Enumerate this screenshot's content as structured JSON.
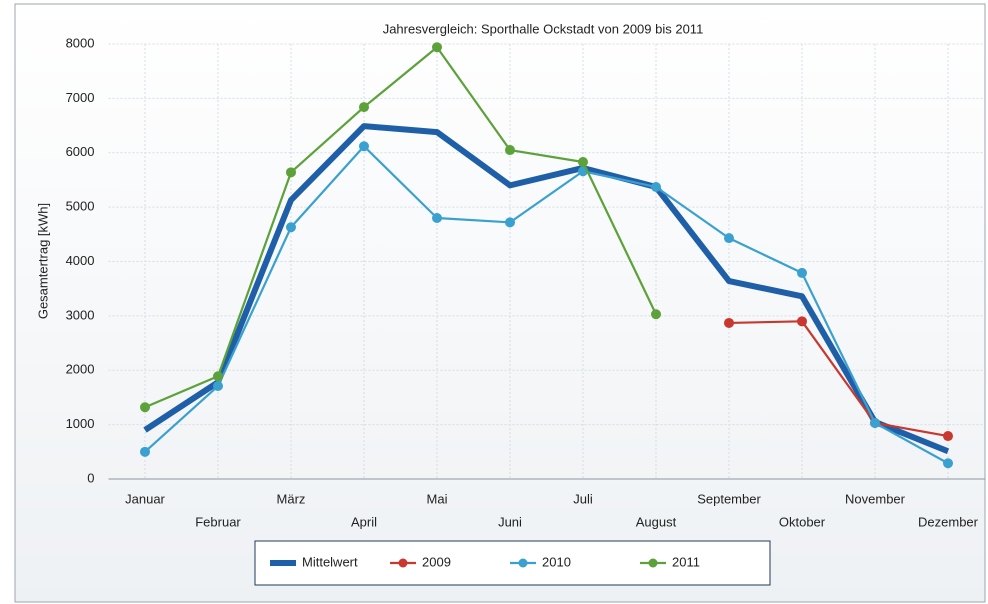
{
  "chart_data": {
    "type": "line",
    "title": "Jahresvergleich: Sporthalle Ockstadt von 2009 bis 2011",
    "y_label": "Gesamtertrag [kWh]",
    "categories": [
      "Januar",
      "Februar",
      "März",
      "April",
      "Mai",
      "Juni",
      "Juli",
      "August",
      "September",
      "Oktober",
      "November",
      "Dezember"
    ],
    "series": [
      {
        "name": "Mittelwert",
        "color": "#1f5fa8",
        "markers": false,
        "values": [
          900,
          1780,
          5130,
          6490,
          6380,
          5400,
          5720,
          5370,
          3640,
          3360,
          1050,
          510
        ]
      },
      {
        "name": "2009",
        "color": "#c8382e",
        "markers": true,
        "values": [
          null,
          null,
          null,
          null,
          null,
          null,
          null,
          null,
          2870,
          2900,
          1030,
          790
        ]
      },
      {
        "name": "2010",
        "color": "#3aa0d0",
        "markers": true,
        "values": [
          500,
          1710,
          4630,
          6120,
          4800,
          4720,
          5660,
          5370,
          4430,
          3790,
          1030,
          290
        ]
      },
      {
        "name": "2011",
        "color": "#5ca13a",
        "markers": true,
        "values": [
          1320,
          1890,
          5640,
          6840,
          7940,
          6050,
          5830,
          3030,
          null,
          null,
          null,
          null
        ]
      }
    ],
    "ylim": [
      0,
      8000
    ],
    "yticks": [
      0,
      1000,
      2000,
      3000,
      4000,
      5000,
      6000,
      7000,
      8000
    ],
    "grid": true,
    "legend": "bottom"
  }
}
